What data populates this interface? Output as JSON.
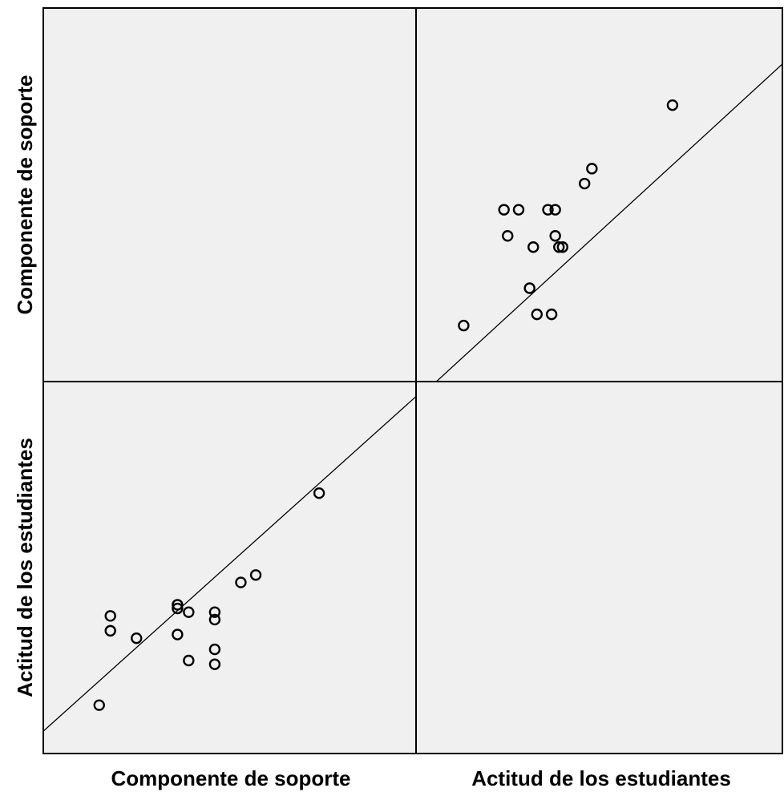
{
  "chart_data": {
    "type": "scatter",
    "subtype": "scatterplot-matrix",
    "variables": [
      "Componente de soporte",
      "Actitud de los estudiantes"
    ],
    "column_titles": [
      "Componente de soporte",
      "Actitud de los estudiantes"
    ],
    "row_titles": [
      "Componente de soporte",
      "Actitud de los estudiantes"
    ],
    "grid": false,
    "tick_labels": false,
    "fit_line": "linear",
    "colors": {
      "background": "#f0f0f0",
      "points": "#000000",
      "frame": "#000000"
    },
    "domain": {
      "x": [
        0,
        100
      ],
      "y": [
        0,
        100
      ]
    },
    "points": [
      {
        "soporte": 15,
        "actitud": 13
      },
      {
        "soporte": 18,
        "actitud": 37
      },
      {
        "soporte": 18,
        "actitud": 33
      },
      {
        "soporte": 25,
        "actitud": 31
      },
      {
        "soporte": 36,
        "actitud": 40
      },
      {
        "soporte": 36,
        "actitud": 39
      },
      {
        "soporte": 36,
        "actitud": 32
      },
      {
        "soporte": 39,
        "actitud": 38
      },
      {
        "soporte": 39,
        "actitud": 25
      },
      {
        "soporte": 46,
        "actitud": 38
      },
      {
        "soporte": 46,
        "actitud": 36
      },
      {
        "soporte": 46,
        "actitud": 28
      },
      {
        "soporte": 46,
        "actitud": 24
      },
      {
        "soporte": 53,
        "actitud": 46
      },
      {
        "soporte": 57,
        "actitud": 48
      },
      {
        "soporte": 74,
        "actitud": 70
      }
    ],
    "fit": [
      {
        "intercept": -5,
        "slope": 0.9
      },
      {
        "intercept": 6,
        "slope": 0.9
      }
    ]
  }
}
